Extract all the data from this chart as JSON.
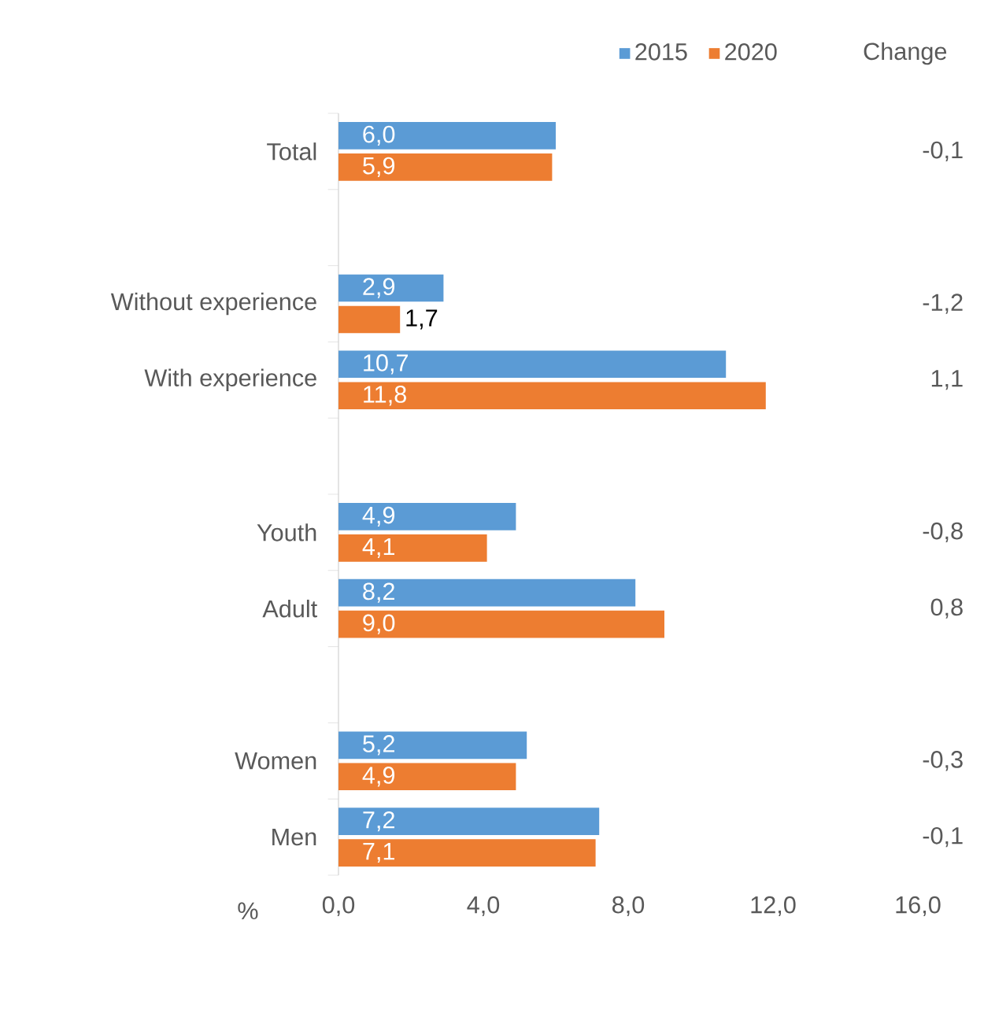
{
  "chart_data": {
    "type": "bar",
    "orientation": "horizontal",
    "categories": [
      "Total",
      null,
      "Without experience",
      "With experience",
      null,
      "Youth",
      "Adult",
      null,
      "Women",
      "Men"
    ],
    "xlabel": "%",
    "xlim": [
      0,
      16
    ],
    "xticks": [
      {
        "value": 0,
        "label": "0,0"
      },
      {
        "value": 4,
        "label": "4,0"
      },
      {
        "value": 8,
        "label": "8,0"
      },
      {
        "value": 12,
        "label": "12,0"
      },
      {
        "value": 16,
        "label": "16,0"
      }
    ],
    "legend": "top right",
    "series": [
      {
        "name": "2015",
        "color": "#5b9bd5",
        "values": [
          6.0,
          null,
          2.9,
          10.7,
          null,
          4.9,
          8.2,
          null,
          5.2,
          7.2
        ],
        "value_labels": [
          "6,0",
          null,
          "2,9",
          "10,7",
          null,
          "4,9",
          "8,2",
          null,
          "5,2",
          "7,2"
        ]
      },
      {
        "name": "2020",
        "color": "#ed7d31",
        "values": [
          5.9,
          null,
          1.7,
          11.8,
          null,
          4.1,
          9.0,
          null,
          4.9,
          7.1
        ],
        "value_labels": [
          "5,9",
          null,
          "1,7",
          "11,8",
          null,
          "4,1",
          "9,0",
          null,
          "4,9",
          "7,1"
        ]
      }
    ],
    "annotations": [
      "Change",
      "-0,1",
      "-1,2",
      "1,1",
      "-0,8",
      "0,8",
      "-0,3",
      "-0,1"
    ]
  }
}
